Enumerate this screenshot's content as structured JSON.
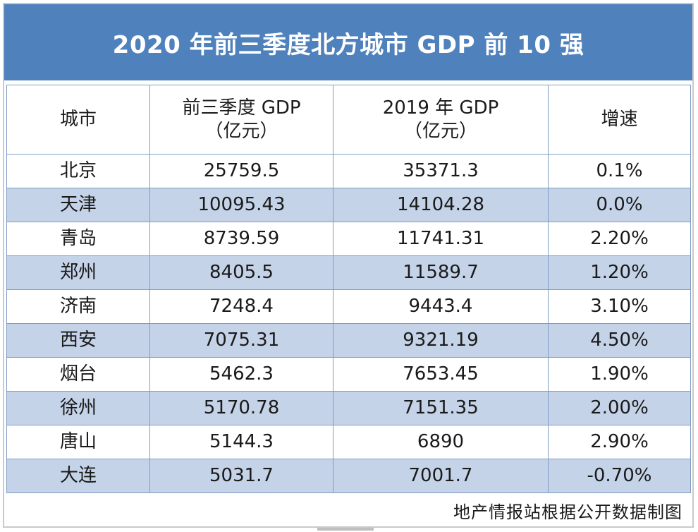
{
  "title": "2020 年前三季度北方城市 GDP 前 10 强",
  "columns": {
    "city": "城市",
    "q3_line1": "前三季度 GDP",
    "q3_line2": "（亿元）",
    "y2019_line1": "2019 年 GDP",
    "y2019_line2": "（亿元）",
    "growth": "增速"
  },
  "rows": [
    {
      "city": "北京",
      "q3": "25759.5",
      "y2019": "35371.3",
      "growth": "0.1%"
    },
    {
      "city": "天津",
      "q3": "10095.43",
      "y2019": "14104.28",
      "growth": "0.0%"
    },
    {
      "city": "青岛",
      "q3": "8739.59",
      "y2019": "11741.31",
      "growth": "2.20%"
    },
    {
      "city": "郑州",
      "q3": "8405.5",
      "y2019": "11589.7",
      "growth": "1.20%"
    },
    {
      "city": "济南",
      "q3": "7248.4",
      "y2019": "9443.4",
      "growth": "3.10%"
    },
    {
      "city": "西安",
      "q3": "7075.31",
      "y2019": "9321.19",
      "growth": "4.50%"
    },
    {
      "city": "烟台",
      "q3": "5462.3",
      "y2019": "7653.45",
      "growth": "1.90%"
    },
    {
      "city": "徐州",
      "q3": "5170.78",
      "y2019": "7151.35",
      "growth": "2.00%"
    },
    {
      "city": "唐山",
      "q3": "5144.3",
      "y2019": "6890",
      "growth": "2.90%"
    },
    {
      "city": "大连",
      "q3": "5031.7",
      "y2019": "7001.7",
      "growth": "-0.70%"
    }
  ],
  "source": "地产情报站根据公开数据制图",
  "colors": {
    "title_bg": "#4f81bd",
    "title_text": "#ffffff",
    "row_alt_bg": "#c5d3e8",
    "border": "#7f9cc4"
  }
}
